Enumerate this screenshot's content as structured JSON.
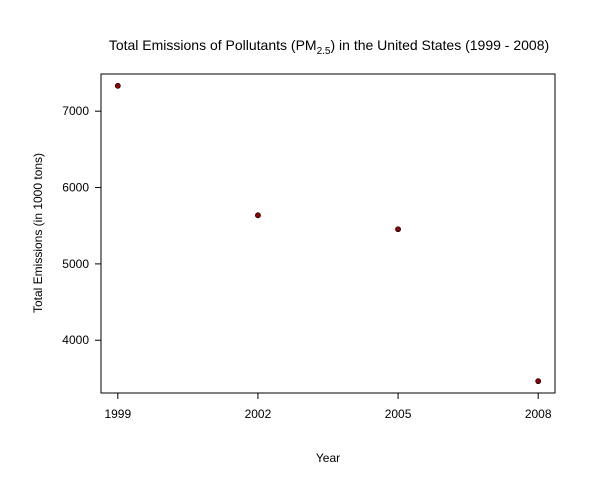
{
  "chart_data": {
    "type": "scatter",
    "title": {
      "prefix": "Total Emissions of Pollutants (PM",
      "subscript": "2.5",
      "suffix": ") in the United States (1999 - 2008)"
    },
    "xlabel": "Year",
    "ylabel": "Total Emissions (in 1000 tons)",
    "x": [
      1999,
      2002,
      2005,
      2008
    ],
    "y": [
      7332,
      5636,
      5454,
      3464
    ],
    "xticks": [
      "1999",
      "2002",
      "2005",
      "2008"
    ],
    "yticks": [
      4000,
      5000,
      6000,
      7000
    ],
    "xlim": [
      1998.64,
      2008.36
    ],
    "ylim": [
      3309,
      7487
    ],
    "grid": false,
    "point_color": "#8b0000"
  }
}
